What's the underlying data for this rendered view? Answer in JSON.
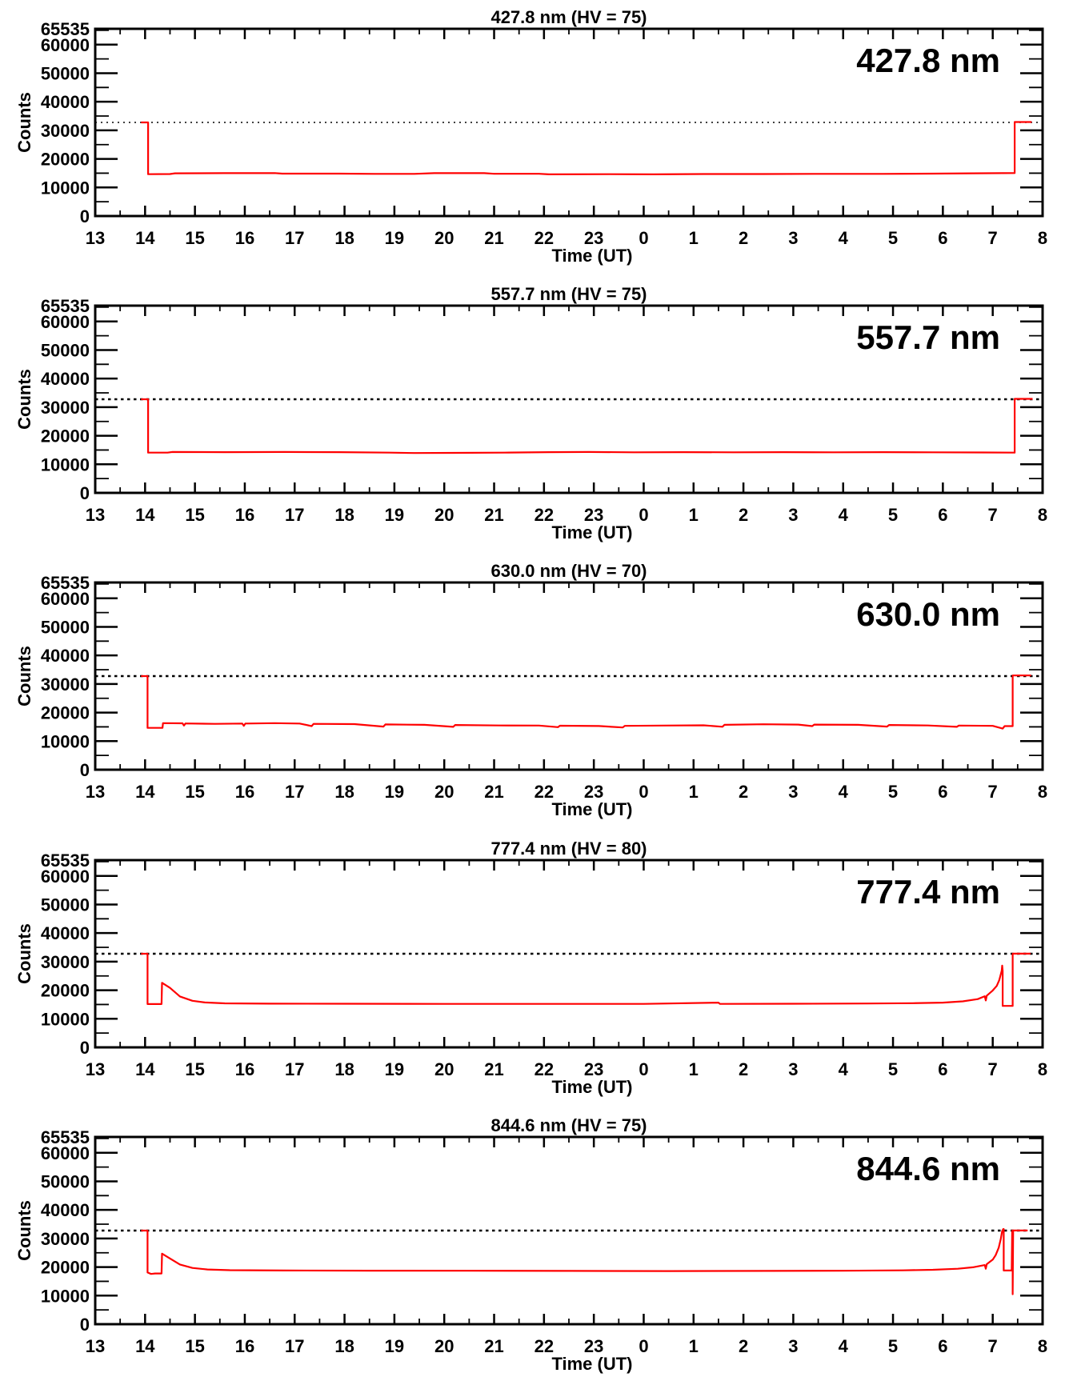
{
  "page": {
    "background": "#ffffff"
  },
  "style": {
    "line_color": "#ff0000",
    "axis_color": "#000000",
    "dashed_line_color": "#000000"
  },
  "axis": {
    "xlabel": "Time (UT)",
    "ylabel": "Counts",
    "x_range_hours": [
      13,
      32
    ],
    "x_ticks": [
      {
        "t": 13,
        "label": "13"
      },
      {
        "t": 14,
        "label": "14"
      },
      {
        "t": 15,
        "label": "15"
      },
      {
        "t": 16,
        "label": "16"
      },
      {
        "t": 17,
        "label": "17"
      },
      {
        "t": 18,
        "label": "18"
      },
      {
        "t": 19,
        "label": "19"
      },
      {
        "t": 20,
        "label": "20"
      },
      {
        "t": 21,
        "label": "21"
      },
      {
        "t": 22,
        "label": "22"
      },
      {
        "t": 23,
        "label": "23"
      },
      {
        "t": 24,
        "label": "0"
      },
      {
        "t": 25,
        "label": "1"
      },
      {
        "t": 26,
        "label": "2"
      },
      {
        "t": 27,
        "label": "3"
      },
      {
        "t": 28,
        "label": "4"
      },
      {
        "t": 29,
        "label": "5"
      },
      {
        "t": 30,
        "label": "6"
      },
      {
        "t": 31,
        "label": "7"
      },
      {
        "t": 32,
        "label": "8"
      }
    ],
    "x_minor_step_hours": 0.5,
    "ylim": [
      0,
      65535
    ],
    "y_ticks": [
      {
        "value": 0,
        "label": "0"
      },
      {
        "value": 10000,
        "label": "10000"
      },
      {
        "value": 20000,
        "label": "20000"
      },
      {
        "value": 30000,
        "label": "30000"
      },
      {
        "value": 40000,
        "label": "40000"
      },
      {
        "value": 50000,
        "label": "50000"
      },
      {
        "value": 60000,
        "label": "60000"
      },
      {
        "value": 65535,
        "label": "65535"
      }
    ],
    "y_minor_ticks": [
      5000,
      15000,
      25000,
      35000,
      45000,
      55000,
      65000
    ],
    "grid": false
  },
  "chart_data": [
    {
      "type": "line",
      "title": "427.8 nm (HV = 75)",
      "label": "427.8 nm",
      "wavelength_nm": "427.8",
      "hv": "75",
      "xlabel": "Time (UT)",
      "ylabel": "Counts",
      "saturation_level": 32767,
      "series": [
        [
          13.92,
          32767
        ],
        [
          14.06,
          32767
        ],
        [
          14.06,
          14650
        ],
        [
          14.5,
          14700
        ],
        [
          14.6,
          14950
        ],
        [
          15.6,
          15000
        ],
        [
          16.6,
          15050
        ],
        [
          16.75,
          14850
        ],
        [
          17.9,
          14850
        ],
        [
          18.6,
          14750
        ],
        [
          19.4,
          14750
        ],
        [
          19.8,
          15000
        ],
        [
          20.8,
          15000
        ],
        [
          21.0,
          14800
        ],
        [
          21.9,
          14800
        ],
        [
          22.1,
          14600
        ],
        [
          23.3,
          14650
        ],
        [
          24.2,
          14600
        ],
        [
          25.2,
          14700
        ],
        [
          26.4,
          14700
        ],
        [
          27.6,
          14750
        ],
        [
          28.8,
          14750
        ],
        [
          29.8,
          14850
        ],
        [
          30.6,
          14950
        ],
        [
          31.2,
          15000
        ],
        [
          31.44,
          15050
        ],
        [
          31.44,
          32900
        ],
        [
          31.78,
          32900
        ]
      ]
    },
    {
      "type": "line",
      "title": "557.7 nm (HV = 75)",
      "label": "557.7 nm",
      "wavelength_nm": "557.7",
      "hv": "75",
      "xlabel": "Time (UT)",
      "ylabel": "Counts",
      "saturation_level": 32767,
      "series": [
        [
          13.92,
          32767
        ],
        [
          14.06,
          32767
        ],
        [
          14.06,
          14100
        ],
        [
          14.45,
          14100
        ],
        [
          14.55,
          14300
        ],
        [
          15.6,
          14250
        ],
        [
          16.8,
          14300
        ],
        [
          17.9,
          14250
        ],
        [
          18.9,
          14100
        ],
        [
          19.4,
          13950
        ],
        [
          20.2,
          14000
        ],
        [
          21.2,
          14100
        ],
        [
          22.1,
          14250
        ],
        [
          22.9,
          14300
        ],
        [
          23.8,
          14200
        ],
        [
          24.8,
          14250
        ],
        [
          25.8,
          14200
        ],
        [
          26.8,
          14250
        ],
        [
          27.8,
          14200
        ],
        [
          28.8,
          14250
        ],
        [
          29.8,
          14200
        ],
        [
          30.8,
          14150
        ],
        [
          31.44,
          14100
        ],
        [
          31.44,
          32900
        ],
        [
          31.8,
          32900
        ]
      ]
    },
    {
      "type": "line",
      "title": "630.0 nm (HV = 70)",
      "label": "630.0 nm",
      "wavelength_nm": "630.0",
      "hv": "70",
      "xlabel": "Time (UT)",
      "ylabel": "Counts",
      "saturation_level": 32767,
      "series": [
        [
          13.92,
          32767
        ],
        [
          14.05,
          32767
        ],
        [
          14.05,
          14650
        ],
        [
          14.35,
          14650
        ],
        [
          14.36,
          16300
        ],
        [
          14.75,
          16250
        ],
        [
          14.78,
          15450
        ],
        [
          14.81,
          16200
        ],
        [
          15.4,
          16050
        ],
        [
          15.95,
          16150
        ],
        [
          15.98,
          15350
        ],
        [
          16.01,
          16150
        ],
        [
          16.6,
          16300
        ],
        [
          17.1,
          16150
        ],
        [
          17.34,
          15250
        ],
        [
          17.38,
          16050
        ],
        [
          18.2,
          15950
        ],
        [
          18.78,
          15100
        ],
        [
          18.82,
          15850
        ],
        [
          19.6,
          15700
        ],
        [
          20.18,
          15000
        ],
        [
          20.22,
          15650
        ],
        [
          21.1,
          15500
        ],
        [
          21.9,
          15450
        ],
        [
          22.28,
          14900
        ],
        [
          22.32,
          15400
        ],
        [
          23.1,
          15300
        ],
        [
          23.58,
          14800
        ],
        [
          23.62,
          15350
        ],
        [
          24.4,
          15450
        ],
        [
          25.2,
          15550
        ],
        [
          25.58,
          15050
        ],
        [
          25.62,
          15700
        ],
        [
          26.4,
          15900
        ],
        [
          27.1,
          15800
        ],
        [
          27.38,
          15250
        ],
        [
          27.42,
          15800
        ],
        [
          28.3,
          15700
        ],
        [
          28.88,
          15100
        ],
        [
          28.92,
          15650
        ],
        [
          29.7,
          15500
        ],
        [
          30.28,
          15000
        ],
        [
          30.32,
          15450
        ],
        [
          31.0,
          15350
        ],
        [
          31.2,
          14400
        ],
        [
          31.24,
          15250
        ],
        [
          31.4,
          15250
        ],
        [
          31.4,
          33000
        ],
        [
          31.77,
          33000
        ]
      ]
    },
    {
      "type": "line",
      "title": "777.4 nm (HV = 80)",
      "label": "777.4 nm",
      "wavelength_nm": "777.4",
      "hv": "80",
      "xlabel": "Time (UT)",
      "ylabel": "Counts",
      "saturation_level": 32767,
      "series": [
        [
          13.92,
          32767
        ],
        [
          14.05,
          32767
        ],
        [
          14.05,
          15150
        ],
        [
          14.33,
          15150
        ],
        [
          14.34,
          22600
        ],
        [
          14.5,
          20800
        ],
        [
          14.7,
          17800
        ],
        [
          14.95,
          16300
        ],
        [
          15.2,
          15700
        ],
        [
          15.6,
          15400
        ],
        [
          16.5,
          15300
        ],
        [
          18,
          15250
        ],
        [
          20,
          15200
        ],
        [
          22,
          15200
        ],
        [
          24,
          15200
        ],
        [
          25.5,
          15650
        ],
        [
          25.53,
          15200
        ],
        [
          27,
          15250
        ],
        [
          28.5,
          15350
        ],
        [
          29.4,
          15450
        ],
        [
          30.0,
          15650
        ],
        [
          30.4,
          16100
        ],
        [
          30.7,
          16900
        ],
        [
          30.84,
          17900
        ],
        [
          30.86,
          16400
        ],
        [
          30.88,
          18100
        ],
        [
          31.0,
          19900
        ],
        [
          31.08,
          21500
        ],
        [
          31.13,
          23500
        ],
        [
          31.16,
          25500
        ],
        [
          31.18,
          26800
        ],
        [
          31.19,
          28600
        ],
        [
          31.2,
          26800
        ],
        [
          31.2,
          14500
        ],
        [
          31.4,
          14500
        ],
        [
          31.4,
          32800
        ],
        [
          31.76,
          32800
        ]
      ]
    },
    {
      "type": "line",
      "title": "844.6 nm (HV = 75)",
      "label": "844.6 nm",
      "wavelength_nm": "844.6",
      "hv": "75",
      "xlabel": "Time (UT)",
      "ylabel": "Counts",
      "saturation_level": 32767,
      "series": [
        [
          13.92,
          32767
        ],
        [
          14.05,
          32767
        ],
        [
          14.05,
          18100
        ],
        [
          14.12,
          17600
        ],
        [
          14.2,
          17750
        ],
        [
          14.33,
          17750
        ],
        [
          14.34,
          24700
        ],
        [
          14.5,
          23000
        ],
        [
          14.7,
          20900
        ],
        [
          14.95,
          19700
        ],
        [
          15.25,
          19150
        ],
        [
          15.7,
          18900
        ],
        [
          16.8,
          18800
        ],
        [
          18.5,
          18750
        ],
        [
          20.5,
          18700
        ],
        [
          22.5,
          18650
        ],
        [
          24.5,
          18600
        ],
        [
          26.5,
          18650
        ],
        [
          28.0,
          18700
        ],
        [
          29.2,
          18850
        ],
        [
          29.8,
          19050
        ],
        [
          30.3,
          19400
        ],
        [
          30.6,
          19900
        ],
        [
          30.84,
          20700
        ],
        [
          30.86,
          19400
        ],
        [
          30.88,
          21000
        ],
        [
          31.0,
          22600
        ],
        [
          31.06,
          24200
        ],
        [
          31.12,
          26800
        ],
        [
          31.16,
          29800
        ],
        [
          31.19,
          32600
        ],
        [
          31.21,
          33300
        ],
        [
          31.22,
          33300
        ],
        [
          31.22,
          18800
        ],
        [
          31.38,
          18800
        ],
        [
          31.39,
          32800
        ],
        [
          31.4,
          32800
        ],
        [
          31.4,
          10500
        ],
        [
          31.41,
          32800
        ],
        [
          31.7,
          32800
        ]
      ]
    }
  ]
}
